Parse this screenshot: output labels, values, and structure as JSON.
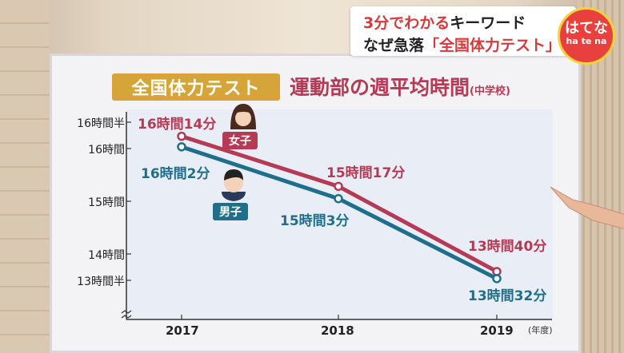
{
  "overlay": {
    "caption_line1_part1": "3分でわかる",
    "caption_line1_part2": "キーワード",
    "caption_line2_part1": "なぜ急落",
    "caption_line2_part2": "「全国体力テスト」",
    "logo_main": "はてな",
    "logo_sub": "ha te na"
  },
  "board": {
    "badge": "全国体力テスト",
    "title": "運動部の週平均時間",
    "title_sub": "(中学校)"
  },
  "chart_data": {
    "type": "line",
    "x": [
      "2017",
      "2018",
      "2019"
    ],
    "x_unit": "(年度)",
    "yticks": [
      "16時間半",
      "16時間",
      "15時間",
      "14時間",
      "13時間半"
    ],
    "ytick_values": [
      16.5,
      16.0,
      15.0,
      14.0,
      13.5
    ],
    "ylim": [
      13.5,
      16.5
    ],
    "series": [
      {
        "name": "女子",
        "color": "#b53a55",
        "values": [
          16.233,
          15.283,
          13.667
        ],
        "labels": [
          "16時間14分",
          "15時間17分",
          "13時間40分"
        ]
      },
      {
        "name": "男子",
        "color": "#1f6e8c",
        "values": [
          16.033,
          15.05,
          13.533
        ],
        "labels": [
          "16時間2分",
          "15時間3分",
          "13時間32分"
        ]
      }
    ]
  }
}
